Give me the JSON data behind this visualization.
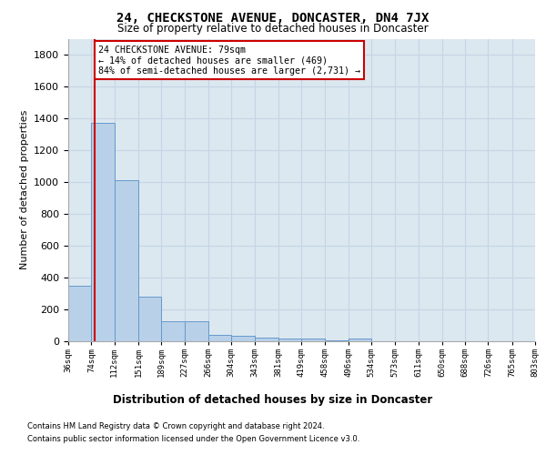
{
  "title": "24, CHECKSTONE AVENUE, DONCASTER, DN4 7JX",
  "subtitle": "Size of property relative to detached houses in Doncaster",
  "xlabel": "Distribution of detached houses by size in Doncaster",
  "ylabel": "Number of detached properties",
  "footnote1": "Contains HM Land Registry data © Crown copyright and database right 2024.",
  "footnote2": "Contains public sector information licensed under the Open Government Licence v3.0.",
  "bar_color": "#b8d0e8",
  "bar_edge_color": "#6699cc",
  "grid_color": "#c5d5e5",
  "background_color": "#dce8f0",
  "vline_color": "#cc0000",
  "property_sqm": 79,
  "annotation_title": "24 CHECKSTONE AVENUE: 79sqm",
  "annotation_line1": "← 14% of detached houses are smaller (469)",
  "annotation_line2": "84% of semi-detached houses are larger (2,731) →",
  "annotation_box_color": "#ffffff",
  "annotation_box_edge": "#cc0000",
  "bin_edges": [
    36,
    74,
    112,
    151,
    189,
    227,
    266,
    304,
    343,
    381,
    419,
    458,
    496,
    534,
    573,
    611,
    650,
    688,
    726,
    765,
    803
  ],
  "bin_counts": [
    350,
    1370,
    1010,
    280,
    128,
    128,
    40,
    35,
    25,
    18,
    15,
    3,
    18,
    0,
    0,
    0,
    0,
    0,
    0,
    0
  ],
  "ylim": [
    0,
    1900
  ],
  "yticks": [
    0,
    200,
    400,
    600,
    800,
    1000,
    1200,
    1400,
    1600,
    1800
  ]
}
